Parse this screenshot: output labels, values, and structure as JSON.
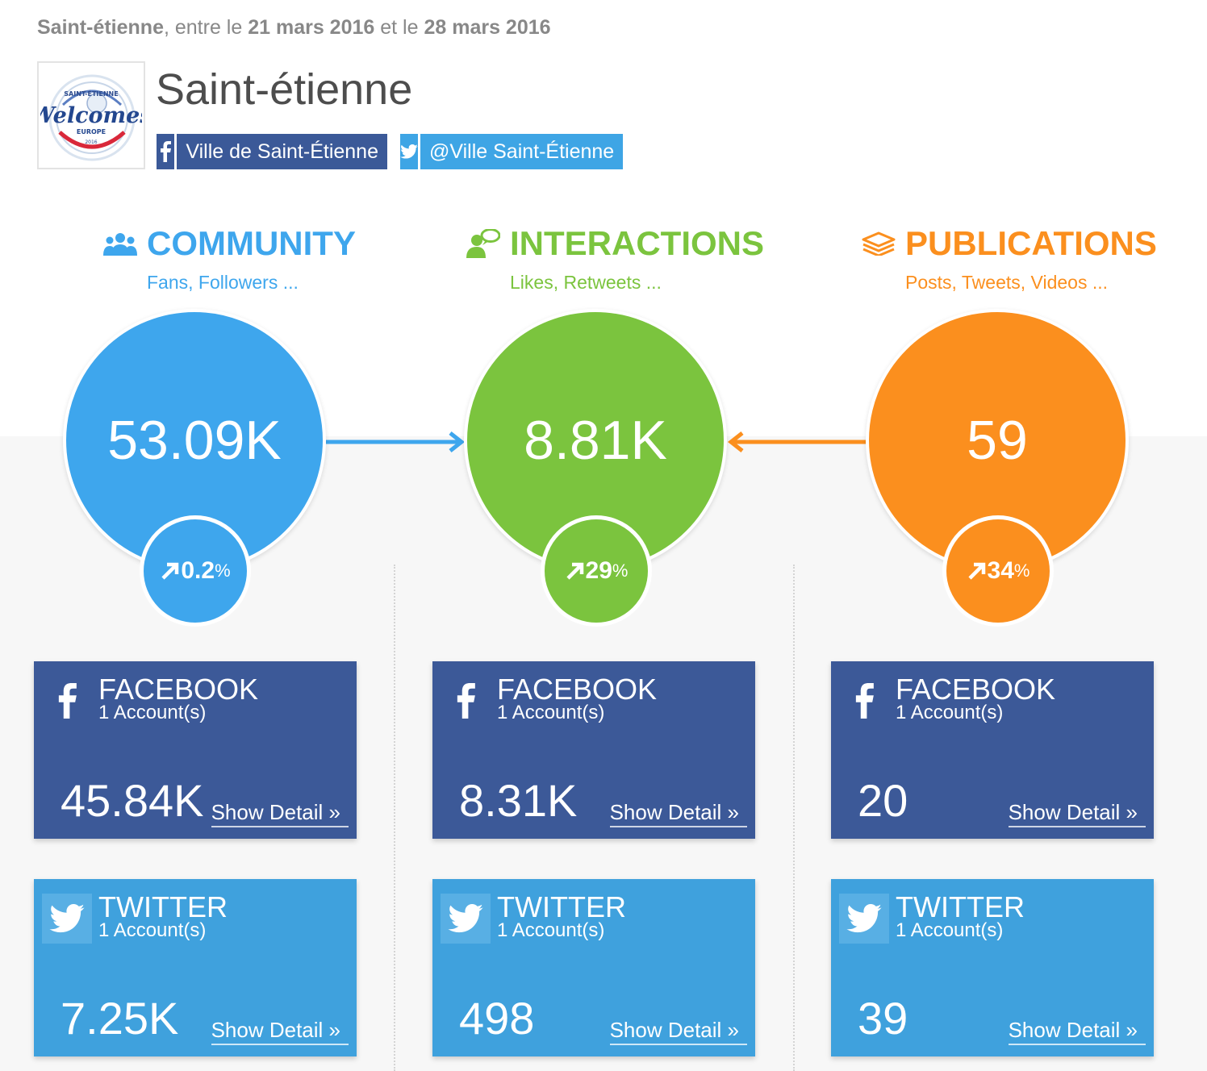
{
  "header": {
    "city": "Saint-étienne",
    "text_between": ", entre le ",
    "date_start": "21 mars 2016",
    "text_and": " et le ",
    "date_end": "28 mars 2016"
  },
  "profile": {
    "title": "Saint-étienne",
    "logo_texts": [
      "SAINT-ÉTIENNE",
      "Welcomes",
      "EUROPE",
      "2016"
    ],
    "facebook_page": "Ville de Saint-Étienne",
    "twitter_handle": "@Ville Saint-Étienne"
  },
  "colors": {
    "community": "#3ea6ed",
    "interactions": "#7bc43e",
    "publications": "#fb8f1e",
    "facebook": "#3c5998",
    "twitter": "#3fa1dd"
  },
  "columns": [
    {
      "title": "COMMUNITY",
      "subtitle": "Fans, Followers ...",
      "icon": "users-icon",
      "total": "53.09K",
      "change_value": "0.2",
      "change_unit": "%",
      "change_icon": "arrow-up-right-icon",
      "cards": [
        {
          "network": "FACEBOOK",
          "accounts": "1 Account(s)",
          "value": "45.84K",
          "link": "Show Detail »"
        },
        {
          "network": "TWITTER",
          "accounts": "1 Account(s)",
          "value": "7.25K",
          "link": "Show Detail »"
        }
      ]
    },
    {
      "title": "INTERACTIONS",
      "subtitle": "Likes, Retweets ...",
      "icon": "user-speech-icon",
      "total": "8.81K",
      "change_value": "29",
      "change_unit": "%",
      "change_icon": "arrow-up-right-icon",
      "cards": [
        {
          "network": "FACEBOOK",
          "accounts": "1 Account(s)",
          "value": "8.31K",
          "link": "Show Detail »"
        },
        {
          "network": "TWITTER",
          "accounts": "1 Account(s)",
          "value": "498",
          "link": "Show Detail »"
        }
      ]
    },
    {
      "title": "PUBLICATIONS",
      "subtitle": "Posts, Tweets, Videos ...",
      "icon": "stack-icon",
      "total": "59",
      "change_value": "34",
      "change_unit": "%",
      "change_icon": "arrow-up-right-icon",
      "cards": [
        {
          "network": "FACEBOOK",
          "accounts": "1 Account(s)",
          "value": "20",
          "link": "Show Detail »"
        },
        {
          "network": "TWITTER",
          "accounts": "1 Account(s)",
          "value": "39",
          "link": "Show Detail »"
        }
      ]
    }
  ]
}
